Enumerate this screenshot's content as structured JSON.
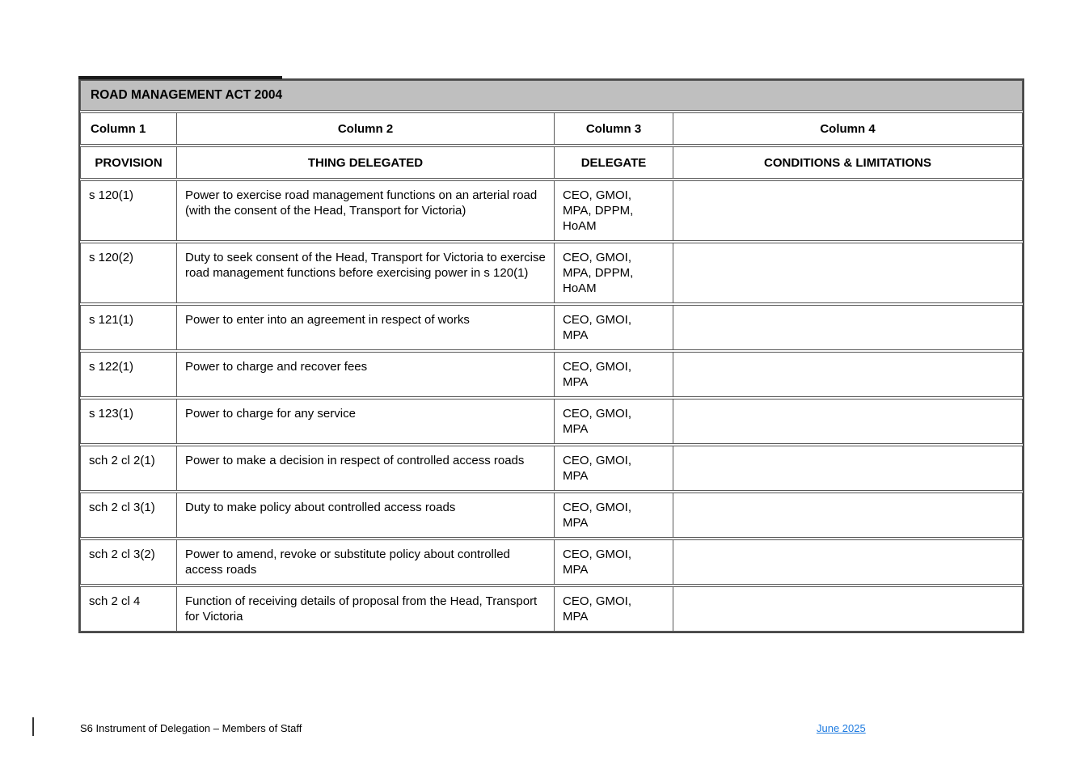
{
  "table": {
    "title": "ROAD MANAGEMENT ACT 2004",
    "column_labels": [
      "Column 1",
      "Column 2",
      "Column 3",
      "Column 4"
    ],
    "headers": [
      "PROVISION",
      "THING DELEGATED",
      "DELEGATE",
      "CONDITIONS & LIMITATIONS"
    ],
    "rows": [
      {
        "provision": "s 120(1)",
        "thing_delegated": "Power to exercise road management functions on an arterial road (with the consent of the Head, Transport for Victoria)",
        "delegate": "CEO, GMOI,\nMPA, DPPM,\nHoAM",
        "conditions": ""
      },
      {
        "provision": "s 120(2)",
        "thing_delegated": "Duty to seek consent of the Head, Transport for Victoria to exercise road management functions before exercising power in s 120(1)",
        "delegate": "CEO, GMOI,\nMPA, DPPM,\nHoAM",
        "conditions": ""
      },
      {
        "provision": "s 121(1)",
        "thing_delegated": "Power to enter into an agreement in respect of works",
        "delegate": "CEO, GMOI,\nMPA",
        "conditions": ""
      },
      {
        "provision": "s 122(1)",
        "thing_delegated": "Power to charge and recover fees",
        "delegate": "CEO, GMOI,\nMPA",
        "conditions": ""
      },
      {
        "provision": "s 123(1)",
        "thing_delegated": "Power to charge for any service",
        "delegate": "CEO, GMOI,\nMPA",
        "conditions": ""
      },
      {
        "provision": "sch 2 cl 2(1)",
        "thing_delegated": "Power to make a decision in respect of controlled access roads",
        "delegate": "CEO, GMOI,\nMPA",
        "conditions": ""
      },
      {
        "provision": "sch 2 cl 3(1)",
        "thing_delegated": "Duty to make policy about controlled access roads",
        "delegate": "CEO, GMOI,\nMPA",
        "conditions": ""
      },
      {
        "provision": "sch 2 cl 3(2)",
        "thing_delegated": "Power to amend, revoke or substitute policy about controlled access roads",
        "delegate": "CEO, GMOI,\nMPA",
        "conditions": ""
      },
      {
        "provision": "sch 2 cl 4",
        "thing_delegated": "Function of receiving details of proposal from the Head, Transport for Victoria",
        "delegate": "CEO, GMOI,\nMPA",
        "conditions": ""
      }
    ]
  },
  "footer": {
    "doc_title": "S6 Instrument of Delegation – Members of Staff",
    "date_link": "June 2025"
  },
  "colors": {
    "header_bg": "#bfbfbf",
    "border": "#595959",
    "outer_border": "#4a4a4a",
    "accent": "#1a1a1a",
    "link": "#1e7be0",
    "text": "#000000"
  }
}
